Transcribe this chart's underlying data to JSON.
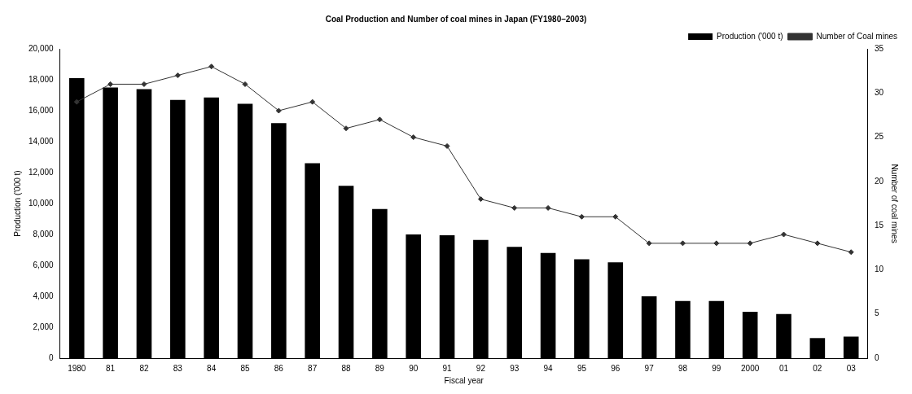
{
  "chart_data": {
    "type": "bar",
    "title": "Coal Production and Number of coal mines in Japan (FY1980–2003)",
    "xlabel": "Fiscal year",
    "ylabel": "Production ('000 t)",
    "y2label": "Number of coal mines",
    "categories": [
      "1980",
      "81",
      "82",
      "83",
      "84",
      "85",
      "86",
      "87",
      "88",
      "89",
      "90",
      "91",
      "92",
      "93",
      "94",
      "95",
      "96",
      "97",
      "98",
      "99",
      "2000",
      "01",
      "02",
      "03"
    ],
    "series": [
      {
        "name": "Production ('000 t)",
        "color": "#000000",
        "values": [
          18100,
          17500,
          17400,
          16700,
          16850,
          16450,
          15200,
          12600,
          11150,
          9650,
          8000,
          7950,
          7650,
          7200,
          6800,
          6400,
          6200,
          4000,
          3700,
          3700,
          3000,
          2850,
          1300,
          1400
        ]
      },
      {
        "name": "Number of Coal mines",
        "type": "line",
        "axis": "y2",
        "color": "#333333",
        "marker": "diamond",
        "values": [
          29,
          31,
          31,
          32,
          33,
          31,
          28,
          29,
          26,
          27,
          25,
          24,
          18,
          17,
          17,
          16,
          16,
          13,
          13,
          13,
          13,
          14,
          13,
          12
        ]
      }
    ],
    "ylim": [
      0,
      20000
    ],
    "yticks": [
      0,
      {
        "value": 2000,
        "label": "2,000"
      },
      {
        "value": 4000,
        "label": "4,000"
      },
      {
        "value": 6000,
        "label": "6,000"
      },
      {
        "value": 8000,
        "label": "8,000"
      },
      {
        "value": 10000,
        "label": "10,000"
      },
      {
        "value": 12000,
        "label": "12,000"
      },
      {
        "value": 14000,
        "label": "14,000"
      },
      {
        "value": 16000,
        "label": "16,000"
      },
      {
        "value": 18000,
        "label": "18,000"
      },
      {
        "value": 20000,
        "label": "20,000"
      }
    ],
    "y2lim": [
      0,
      35
    ],
    "y2ticks": [
      0,
      5,
      10,
      15,
      20,
      25,
      30,
      35
    ],
    "grid": false,
    "legend": "top right"
  }
}
